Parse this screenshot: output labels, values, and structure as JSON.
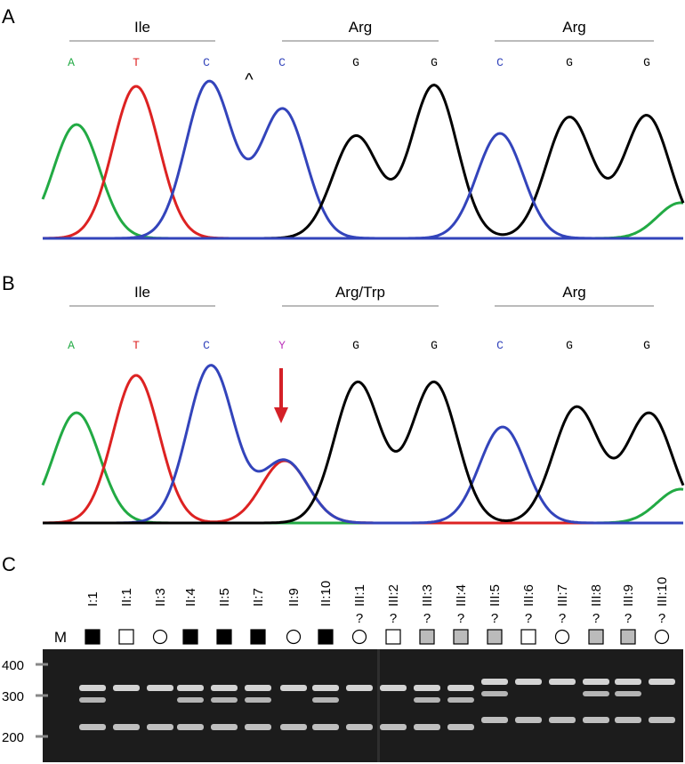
{
  "panel_a": {
    "label": "A",
    "codons": [
      "Ile",
      "Arg",
      "Arg"
    ],
    "caret": "^",
    "bases": [
      {
        "text": "A",
        "color": "#22aa44"
      },
      {
        "text": "T",
        "color": "#dd2222"
      },
      {
        "text": "C",
        "color": "#3344bb"
      },
      {
        "text": "C",
        "color": "#3344bb"
      },
      {
        "text": "G",
        "color": "#000000"
      },
      {
        "text": "G",
        "color": "#000000"
      },
      {
        "text": "C",
        "color": "#3344bb"
      },
      {
        "text": "G",
        "color": "#000000"
      },
      {
        "text": "G",
        "color": "#000000"
      }
    ]
  },
  "panel_b": {
    "label": "B",
    "codons": [
      "Ile",
      "Arg/Trp",
      "Arg"
    ],
    "bases": [
      {
        "text": "A",
        "color": "#22aa44"
      },
      {
        "text": "T",
        "color": "#dd2222"
      },
      {
        "text": "C",
        "color": "#3344bb"
      },
      {
        "text": "Y",
        "color": "#bb33bb"
      },
      {
        "text": "G",
        "color": "#000000"
      },
      {
        "text": "G",
        "color": "#000000"
      },
      {
        "text": "C",
        "color": "#3344bb"
      },
      {
        "text": "G",
        "color": "#000000"
      },
      {
        "text": "G",
        "color": "#000000"
      }
    ]
  },
  "panel_c": {
    "label": "C",
    "marker": "M",
    "sizes": [
      "400",
      "300",
      "200"
    ],
    "lanes": [
      {
        "name": "I:1",
        "shape": "square",
        "fill": "#000000"
      },
      {
        "name": "II:1",
        "shape": "square",
        "fill": "#ffffff"
      },
      {
        "name": "II:3",
        "shape": "circle",
        "fill": "#ffffff"
      },
      {
        "name": "II:4",
        "shape": "square",
        "fill": "#000000"
      },
      {
        "name": "II:5",
        "shape": "square",
        "fill": "#000000"
      },
      {
        "name": "II:7",
        "shape": "square",
        "fill": "#000000"
      },
      {
        "name": "II:9",
        "shape": "circle",
        "fill": "#ffffff"
      },
      {
        "name": "II:10",
        "shape": "square",
        "fill": "#000000"
      },
      {
        "name": "III:1",
        "status": "?",
        "shape": "circle",
        "fill": "#ffffff"
      },
      {
        "name": "III:2",
        "status": "?",
        "shape": "square",
        "fill": "#ffffff"
      },
      {
        "name": "III:3",
        "status": "?",
        "shape": "square",
        "fill": "#bbbbbb"
      },
      {
        "name": "III:4",
        "status": "?",
        "shape": "square",
        "fill": "#bbbbbb"
      },
      {
        "name": "III:5",
        "status": "?",
        "shape": "square",
        "fill": "#bbbbbb"
      },
      {
        "name": "III:6",
        "status": "?",
        "shape": "square",
        "fill": "#ffffff"
      },
      {
        "name": "III:7",
        "status": "?",
        "shape": "circle",
        "fill": "#ffffff"
      },
      {
        "name": "III:8",
        "status": "?",
        "shape": "square",
        "fill": "#bbbbbb"
      },
      {
        "name": "III:9",
        "status": "?",
        "shape": "square",
        "fill": "#bbbbbb"
      },
      {
        "name": "III:10",
        "status": "?",
        "shape": "circle",
        "fill": "#ffffff"
      }
    ]
  }
}
